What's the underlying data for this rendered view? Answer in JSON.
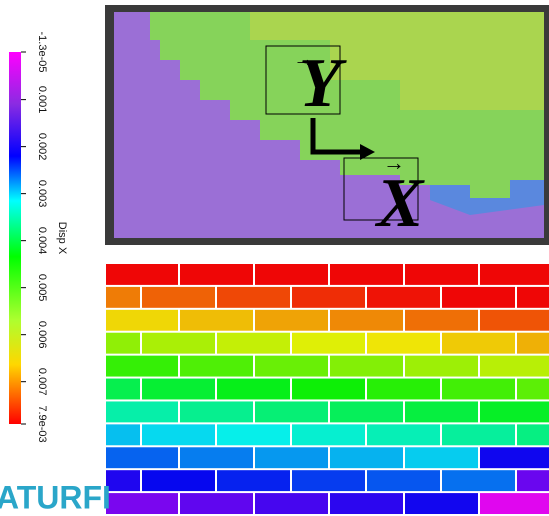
{
  "colorbar": {
    "label": "Disp X",
    "lim": [
      -1.3e-05,
      0.0079
    ],
    "ticks": [
      {
        "value": -1.3e-05,
        "label": "-1.3e-05"
      },
      0.001,
      0.002,
      0.003,
      0.004,
      0.005,
      0.006,
      0.007,
      {
        "value": 0.0079,
        "label": "7.9e-03"
      }
    ]
  },
  "overlay": {
    "y_label": "Y",
    "x_label": "X",
    "y_arrow": "→",
    "x_arrow": "→"
  },
  "logo": "ATURFI"
}
